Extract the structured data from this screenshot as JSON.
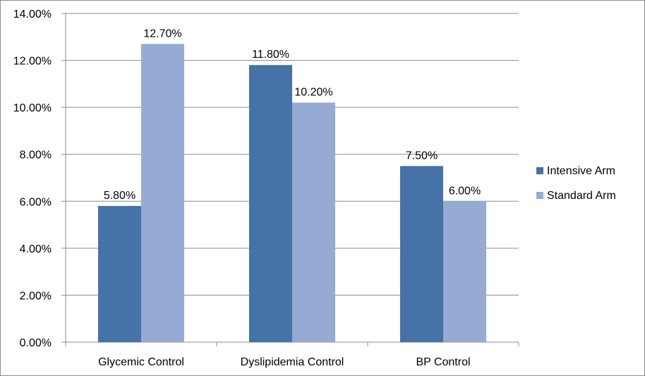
{
  "chart_data": {
    "type": "bar",
    "categories": [
      "Glycemic Control",
      "Dyslipidemia Control",
      "BP Control"
    ],
    "series": [
      {
        "name": "Intensive Arm",
        "values": [
          5.8,
          11.8,
          7.5
        ],
        "labels": [
          "5.80%",
          "11.80%",
          "7.50%"
        ],
        "color": "#4572a7"
      },
      {
        "name": "Standard Arm",
        "values": [
          12.7,
          10.2,
          6.0
        ],
        "labels": [
          "12.70%",
          "10.20%",
          "6.00%"
        ],
        "color": "#95abd3"
      }
    ],
    "y_ticks": [
      0,
      2,
      4,
      6,
      8,
      10,
      12,
      14
    ],
    "y_tick_labels": [
      "0.00%",
      "2.00%",
      "4.00%",
      "6.00%",
      "8.00%",
      "10.00%",
      "12.00%",
      "14.00%"
    ],
    "ylim": [
      0,
      14
    ],
    "grid": true,
    "legend_position": "right",
    "title": "",
    "xlabel": "",
    "ylabel": ""
  }
}
